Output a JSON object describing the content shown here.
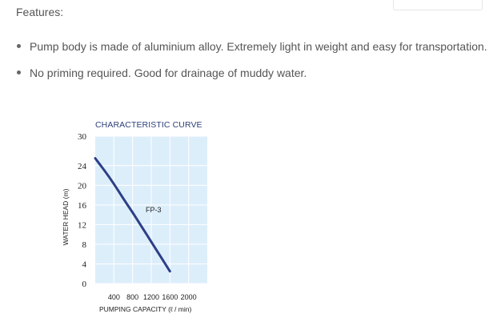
{
  "features": {
    "heading": "Features:",
    "items": [
      "Pump body is made of aluminium alloy. Extremely light in weight and easy for transportation.",
      "No priming required. Good for drainage of muddy water."
    ]
  },
  "colors": {
    "chart_background": "#ddeefb",
    "grid": "#ffffff",
    "curve": "#2d3f86",
    "title": "#2d3f78"
  },
  "chart_data": {
    "type": "line",
    "title": "CHARACTERISTIC CURVE",
    "xlabel": "PUMPING CAPACITY (ℓ / min)",
    "ylabel": "WATER HEAD (m)",
    "xlim": [
      0,
      2400
    ],
    "ylim": [
      0,
      30
    ],
    "x_ticks": [
      "400",
      "800",
      "1200",
      "1600",
      "2000"
    ],
    "y_ticks": [
      "0",
      "4",
      "8",
      "12",
      "16",
      "20",
      "24",
      "30"
    ],
    "grid": true,
    "series": [
      {
        "name": "FP-3",
        "x": [
          0,
          200,
          400,
          600,
          800,
          1000,
          1200,
          1400,
          1600
        ],
        "y": [
          25.5,
          23,
          20.3,
          17.3,
          14.5,
          11.5,
          8.5,
          5.5,
          2.5
        ]
      }
    ]
  }
}
